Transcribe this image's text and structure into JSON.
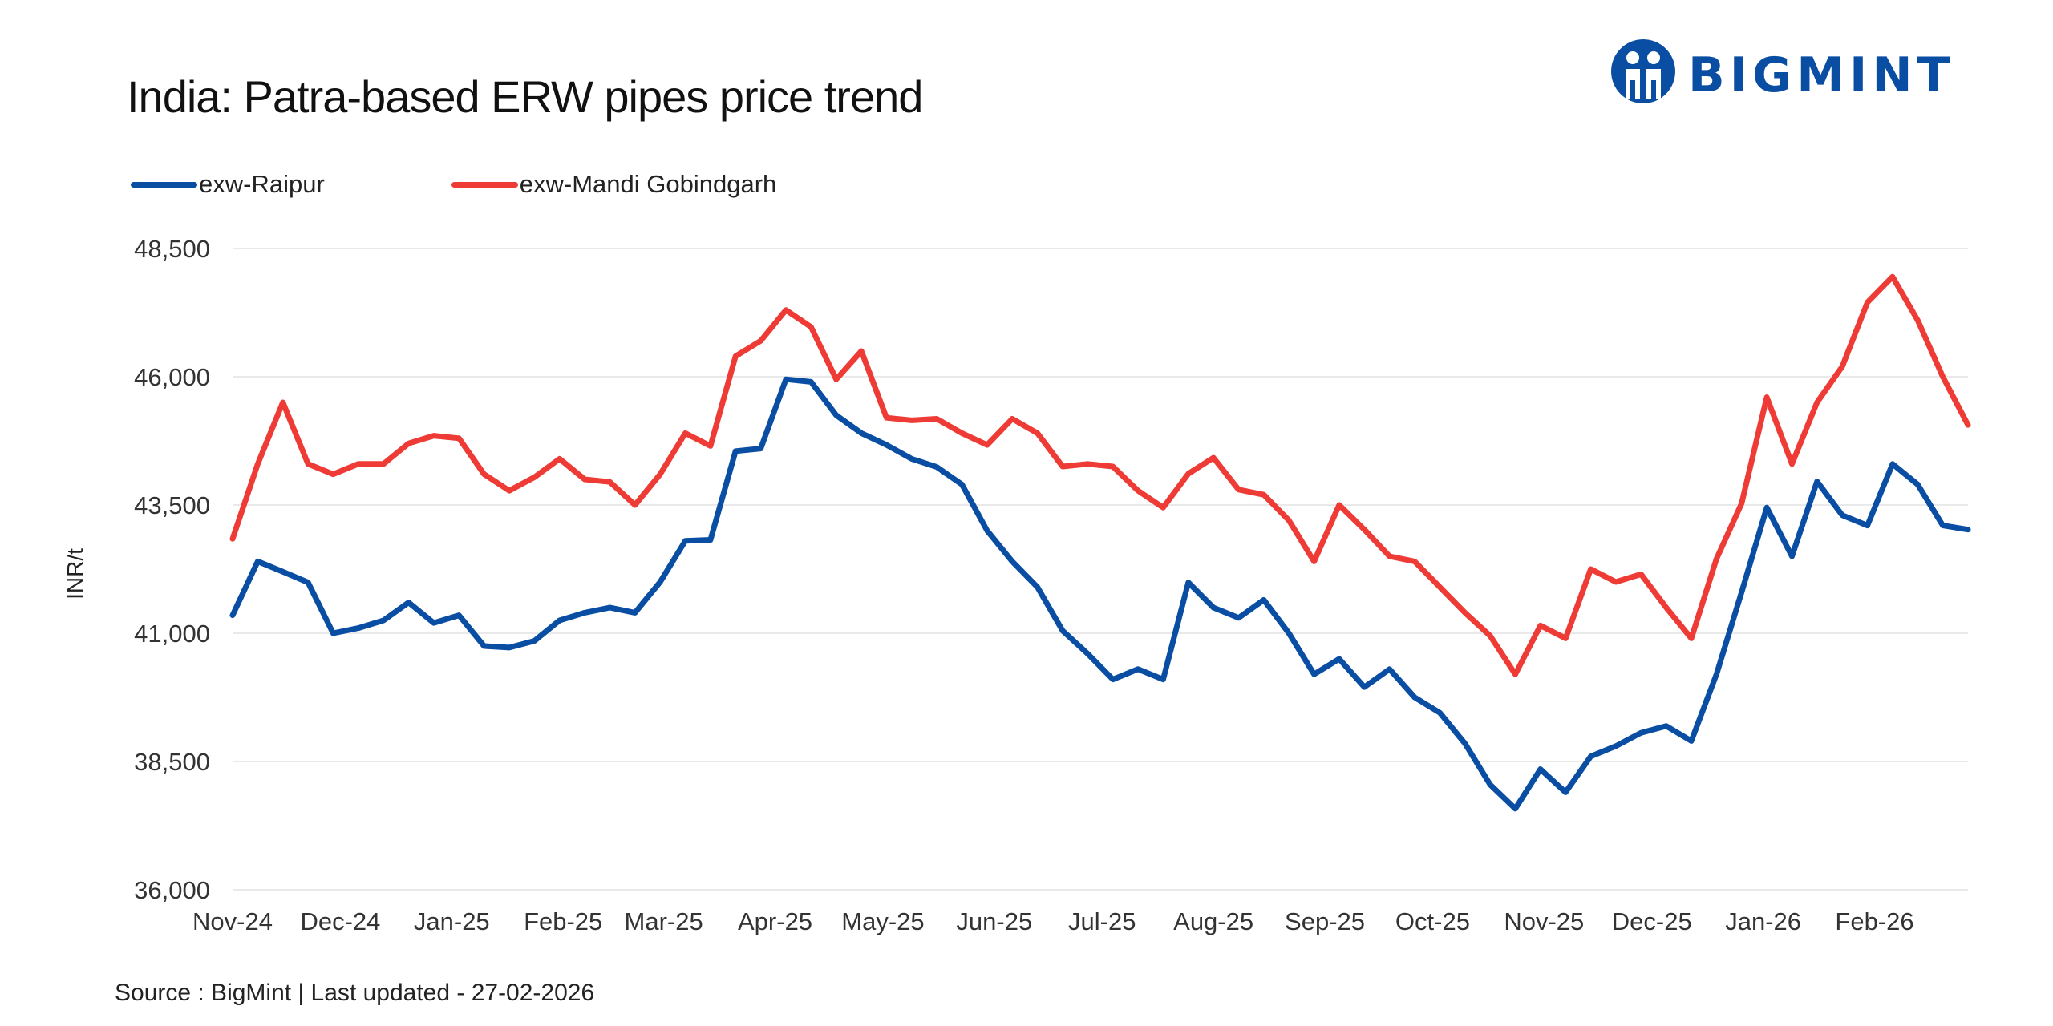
{
  "header": {
    "title": "India: Patra-based ERW pipes price trend"
  },
  "logo": {
    "text": "BIGMINT",
    "color": "#0a4ea3"
  },
  "footer": {
    "source": "Source : BigMint | Last updated - 27-02-2026"
  },
  "chart_data": {
    "type": "line",
    "title": "India: Patra-based ERW pipes price trend",
    "ylabel": "INR/t",
    "xlabel": "",
    "ylim": [
      36000,
      48500
    ],
    "yticks": [
      "36,000",
      "38,500",
      "41,000",
      "43,500",
      "46,000",
      "48,500"
    ],
    "ytick_values": [
      36000,
      38500,
      41000,
      43500,
      46000,
      48500
    ],
    "xticks": [
      "Nov-24",
      "Dec-24",
      "Jan-25",
      "Feb-25",
      "Mar-25",
      "Apr-25",
      "May-25",
      "Jun-25",
      "Jul-25",
      "Aug-25",
      "Sep-25",
      "Oct-25",
      "Nov-25",
      "Dec-25",
      "Jan-26",
      "Feb-26"
    ],
    "xtick_dates": [
      "2024-11-01",
      "2024-12-01",
      "2025-01-01",
      "2025-02-01",
      "2025-03-01",
      "2025-04-01",
      "2025-05-01",
      "2025-06-01",
      "2025-07-01",
      "2025-08-01",
      "2025-09-01",
      "2025-10-01",
      "2025-11-01",
      "2025-12-01",
      "2026-01-01",
      "2026-02-01"
    ],
    "grid": "horizontal",
    "legend_position": "top-left",
    "x": [
      "2024-11-01",
      "2024-11-08",
      "2024-11-15",
      "2024-11-22",
      "2024-11-29",
      "2024-12-06",
      "2024-12-13",
      "2024-12-20",
      "2024-12-27",
      "2025-01-03",
      "2025-01-10",
      "2025-01-17",
      "2025-01-24",
      "2025-01-31",
      "2025-02-07",
      "2025-02-14",
      "2025-02-21",
      "2025-02-28",
      "2025-03-07",
      "2025-03-14",
      "2025-03-21",
      "2025-03-28",
      "2025-04-04",
      "2025-04-11",
      "2025-04-18",
      "2025-04-25",
      "2025-05-02",
      "2025-05-09",
      "2025-05-16",
      "2025-05-23",
      "2025-05-30",
      "2025-06-06",
      "2025-06-13",
      "2025-06-20",
      "2025-06-27",
      "2025-07-04",
      "2025-07-11",
      "2025-07-18",
      "2025-07-25",
      "2025-08-01",
      "2025-08-08",
      "2025-08-15",
      "2025-08-22",
      "2025-08-29",
      "2025-09-05",
      "2025-09-12",
      "2025-09-19",
      "2025-09-26",
      "2025-10-03",
      "2025-10-10",
      "2025-10-17",
      "2025-10-24",
      "2025-10-31",
      "2025-11-07",
      "2025-11-14",
      "2025-11-21",
      "2025-11-28",
      "2025-12-05",
      "2025-12-12",
      "2025-12-19",
      "2025-12-26",
      "2026-01-02",
      "2026-01-09",
      "2026-01-16",
      "2026-01-23",
      "2026-01-30",
      "2026-02-06",
      "2026-02-13",
      "2026-02-20",
      "2026-02-27"
    ],
    "series": [
      {
        "name": "exw-Raipur",
        "color": "#0a4ea3",
        "values": [
          41350,
          42400,
          42200,
          41990,
          41000,
          41100,
          41250,
          41600,
          41200,
          41350,
          40750,
          40720,
          40850,
          41250,
          41400,
          41500,
          41400,
          42000,
          42800,
          42820,
          44550,
          44600,
          45950,
          45900,
          45250,
          44900,
          44670,
          44400,
          44240,
          43900,
          43000,
          42400,
          41900,
          41050,
          40600,
          40100,
          40300,
          40100,
          41990,
          41500,
          41300,
          41650,
          41000,
          40200,
          40500,
          39950,
          40300,
          39750,
          39450,
          38850,
          38050,
          37580,
          38350,
          37900,
          38600,
          38800,
          39060,
          39190,
          38900,
          40200,
          41800,
          43450,
          42500,
          43960,
          43300,
          43100,
          44300,
          43900,
          43100,
          43020
        ]
      },
      {
        "name": "exw-Mandi Gobindgarh",
        "color": "#ef3b36",
        "values": [
          42840,
          44300,
          45500,
          44300,
          44100,
          44300,
          44300,
          44700,
          44850,
          44800,
          44100,
          43780,
          44040,
          44400,
          44000,
          43950,
          43500,
          44100,
          44900,
          44650,
          46400,
          46700,
          47300,
          46970,
          45950,
          46500,
          45200,
          45150,
          45180,
          44900,
          44670,
          45180,
          44900,
          44250,
          44300,
          44250,
          43780,
          43450,
          44110,
          44420,
          43800,
          43700,
          43200,
          42400,
          43500,
          43020,
          42500,
          42400,
          41900,
          41400,
          40950,
          40200,
          41150,
          40900,
          42250,
          42000,
          42150,
          41500,
          40900,
          42450,
          43530,
          45600,
          44300,
          45500,
          46200,
          47450,
          47950,
          47100,
          46000,
          45060
        ]
      }
    ]
  }
}
